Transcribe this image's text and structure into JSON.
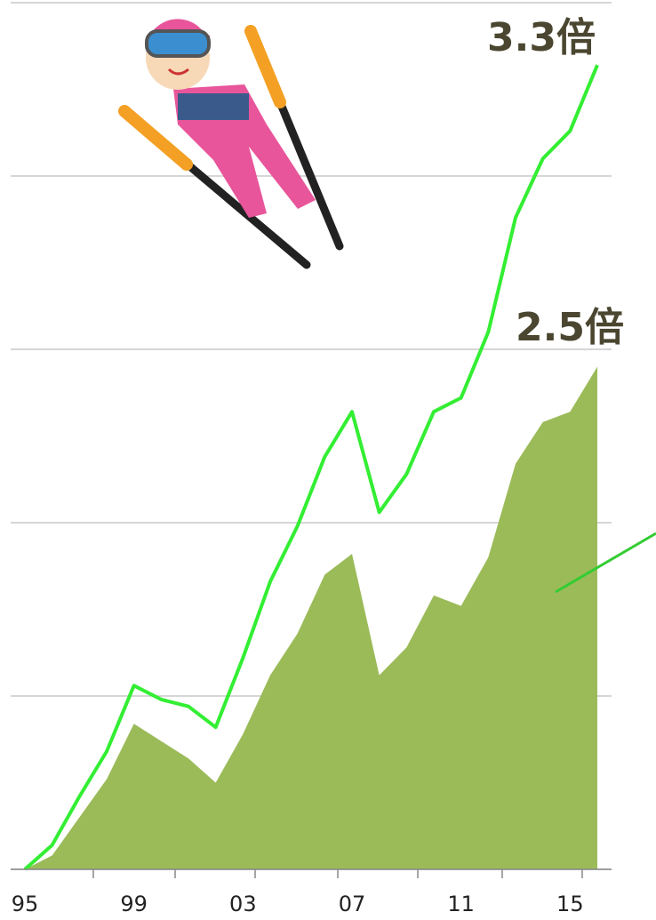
{
  "chart_data": {
    "type": "line",
    "categories": [
      "95",
      null,
      null,
      null,
      "99",
      null,
      null,
      null,
      "03",
      null,
      null,
      null,
      "07",
      null,
      null,
      null,
      "11",
      null,
      null,
      null,
      "15",
      null
    ],
    "series": [
      {
        "type": "area",
        "color": "#9bbb59",
        "values": [
          1.0,
          1.04,
          1.15,
          1.26,
          1.42,
          1.37,
          1.32,
          1.25,
          1.39,
          1.56,
          1.68,
          1.85,
          1.91,
          1.56,
          1.64,
          1.79,
          1.76,
          1.9,
          2.17,
          2.29,
          2.32,
          2.45
        ]
      },
      {
        "type": "line",
        "color": "#33ee33",
        "values": [
          1.0,
          1.07,
          1.21,
          1.34,
          1.53,
          1.49,
          1.47,
          1.41,
          1.61,
          1.83,
          1.99,
          2.19,
          2.32,
          2.03,
          2.14,
          2.32,
          2.36,
          2.55,
          2.88,
          3.05,
          3.13,
          3.32
        ]
      }
    ],
    "ylim": [
      1,
      3.5
    ],
    "yticks": [
      1,
      1.5,
      2,
      2.5,
      3,
      3.5
    ],
    "grid": true,
    "annotations": [
      {
        "text": "3.3倍"
      },
      {
        "text": "2.5倍"
      }
    ]
  }
}
